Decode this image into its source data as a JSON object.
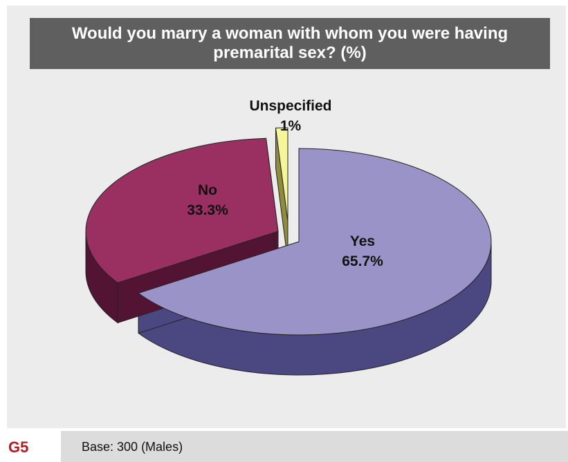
{
  "chart_data": {
    "type": "pie",
    "title": "Would you marry a woman with whom you were having premarital sex? (%)",
    "slices": [
      {
        "label": "Yes",
        "value": 65.7,
        "value_label": "65.7%",
        "color": "#9a93c8",
        "side_color": "#4b4881"
      },
      {
        "label": "No",
        "value": 33.3,
        "value_label": "33.3%",
        "color": "#9a2f61",
        "side_color": "#531433"
      },
      {
        "label": "Unspecified",
        "value": 1,
        "value_label": "1%",
        "color": "#f6f59a",
        "side_color": "#8f8c3c"
      }
    ],
    "exploded": true,
    "three_d": true
  },
  "footer": {
    "figure_id": "G5",
    "base_note": "Base: 300 (Males)"
  }
}
